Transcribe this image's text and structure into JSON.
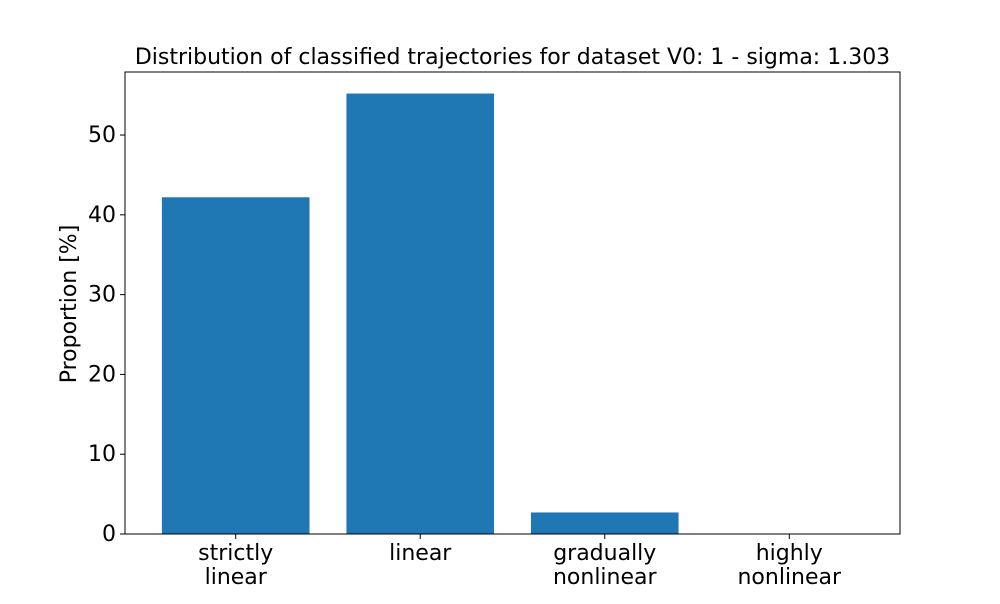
{
  "chart_data": {
    "type": "bar",
    "title": "Distribution of classified trajectories for dataset V0: 1 - sigma: 1.303",
    "xlabel": "",
    "ylabel": "Proportion [%]",
    "categories": [
      [
        "strictly",
        "linear"
      ],
      [
        "linear"
      ],
      [
        "gradually",
        "nonlinear"
      ],
      [
        "highly",
        "nonlinear"
      ]
    ],
    "values": [
      42.2,
      55.2,
      2.7,
      0.0
    ],
    "ylim": [
      0,
      57.9
    ],
    "yticks": [
      0,
      10,
      20,
      30,
      40,
      50
    ],
    "bar_color": "#1f77b4",
    "grid": false,
    "legend": "none"
  }
}
